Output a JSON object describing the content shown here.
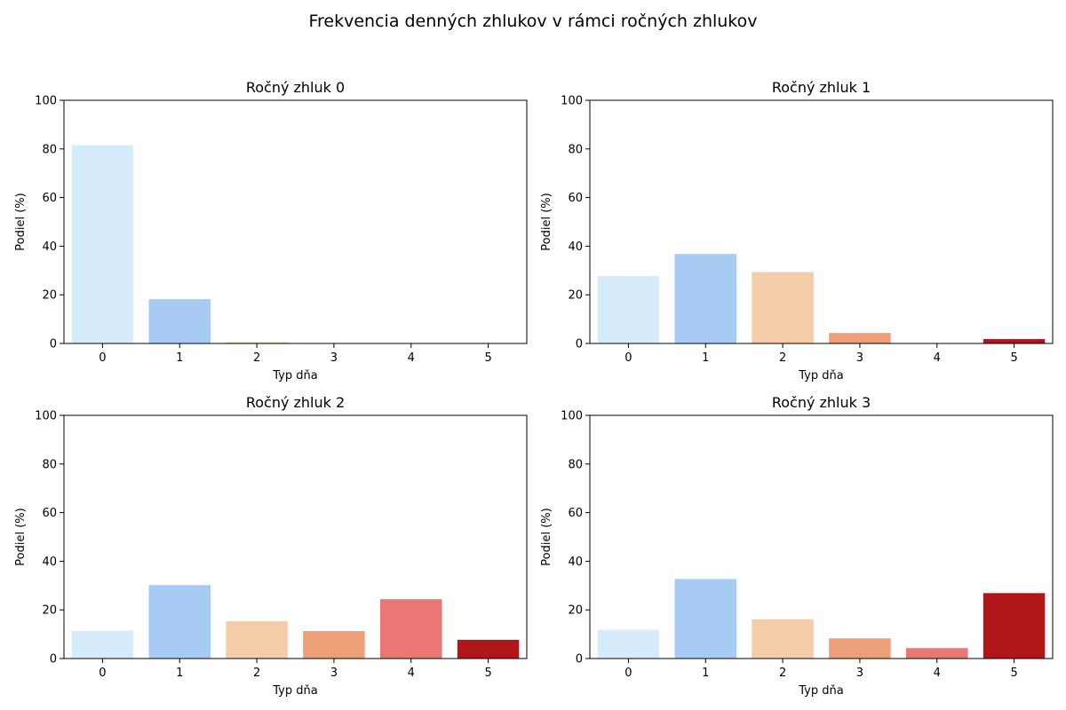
{
  "title": "Frekvencia denných zhlukov v rámci ročných zhlukov",
  "colors": [
    "#d6ecfa",
    "#a7cbf2",
    "#f5ccaa",
    "#eda077",
    "#eb7775",
    "#b01518"
  ],
  "chart_data": [
    {
      "type": "bar",
      "title": "Ročný zhluk 0",
      "xlabel": "Typ dňa",
      "ylabel": "Podiel (%)",
      "categories": [
        "0",
        "1",
        "2",
        "3",
        "4",
        "5"
      ],
      "values": [
        81.5,
        18.2,
        0.5,
        0,
        0,
        0
      ],
      "ylim": [
        0,
        100
      ],
      "yticks": [
        "0",
        "20",
        "40",
        "60",
        "80",
        "100"
      ]
    },
    {
      "type": "bar",
      "title": "Ročný zhluk 1",
      "xlabel": "Typ dňa",
      "ylabel": "Podiel (%)",
      "categories": [
        "0",
        "1",
        "2",
        "3",
        "4",
        "5"
      ],
      "values": [
        27.7,
        36.8,
        29.4,
        4.3,
        0,
        1.8
      ],
      "ylim": [
        0,
        100
      ],
      "yticks": [
        "0",
        "20",
        "40",
        "60",
        "80",
        "100"
      ]
    },
    {
      "type": "bar",
      "title": "Ročný zhluk 2",
      "xlabel": "Typ dňa",
      "ylabel": "Podiel (%)",
      "categories": [
        "0",
        "1",
        "2",
        "3",
        "4",
        "5"
      ],
      "values": [
        11.4,
        30.2,
        15.3,
        11.3,
        24.4,
        7.7
      ],
      "ylim": [
        0,
        100
      ],
      "yticks": [
        "0",
        "20",
        "40",
        "60",
        "80",
        "100"
      ]
    },
    {
      "type": "bar",
      "title": "Ročný zhluk 3",
      "xlabel": "Typ dňa",
      "ylabel": "Podiel (%)",
      "categories": [
        "0",
        "1",
        "2",
        "3",
        "4",
        "5"
      ],
      "values": [
        11.8,
        32.7,
        16.1,
        8.3,
        4.3,
        26.9
      ],
      "ylim": [
        0,
        100
      ],
      "yticks": [
        "0",
        "20",
        "40",
        "60",
        "80",
        "100"
      ]
    }
  ]
}
